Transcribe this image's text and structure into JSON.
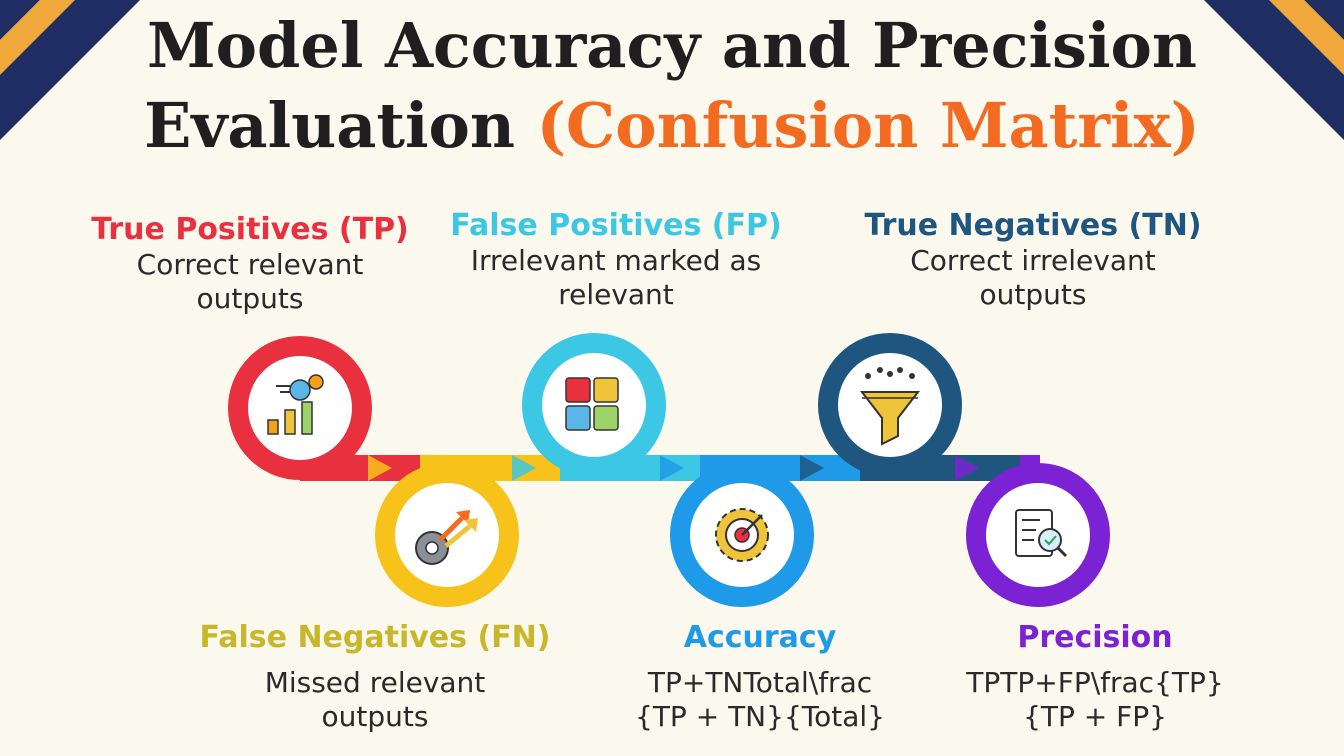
{
  "title": {
    "line1": "Model Accuracy and Precision",
    "line2_prefix": "Evaluation",
    "line2_accent": "(Confusion Matrix)"
  },
  "colors": {
    "title": "#1f1f1f",
    "accent": "#f26b21",
    "background": "#fbf8ee",
    "corner_navy": "#1f2f63",
    "corner_gold": "#f2a93b"
  },
  "steps": [
    {
      "id": "tp",
      "heading": "True Positives (TP)",
      "desc_line1": "Correct relevant",
      "desc_line2": "outputs",
      "color": "#e8303f",
      "icon": "analytics-gear-chart-icon"
    },
    {
      "id": "fn",
      "heading": "False Negatives (FN)",
      "desc_line1": "Missed relevant",
      "desc_line2": "outputs",
      "color": "#f7c31a",
      "heading_color": "#c8b72a",
      "icon": "gear-growth-arrows-icon"
    },
    {
      "id": "fp",
      "heading": "False Positives (FP)",
      "desc_line1": "Irrelevant marked as",
      "desc_line2": "relevant",
      "color": "#3cc7e4",
      "icon": "puzzle-pieces-icon"
    },
    {
      "id": "acc",
      "heading": "Accuracy",
      "desc_line1": "TP+TNTotal\\frac",
      "desc_line2": "{TP + TN}{Total}",
      "color": "#1e9ae8",
      "icon": "target-gear-icon"
    },
    {
      "id": "tn",
      "heading": "True Negatives (TN)",
      "desc_line1": "Correct irrelevant",
      "desc_line2": "outputs",
      "color": "#1f5680",
      "icon": "filter-funnel-icon"
    },
    {
      "id": "prec",
      "heading": "Precision",
      "desc_line1": "TPTP+FP\\frac{TP}",
      "desc_line2": "{TP + FP}",
      "color": "#7b22d4",
      "icon": "document-search-icon"
    }
  ]
}
